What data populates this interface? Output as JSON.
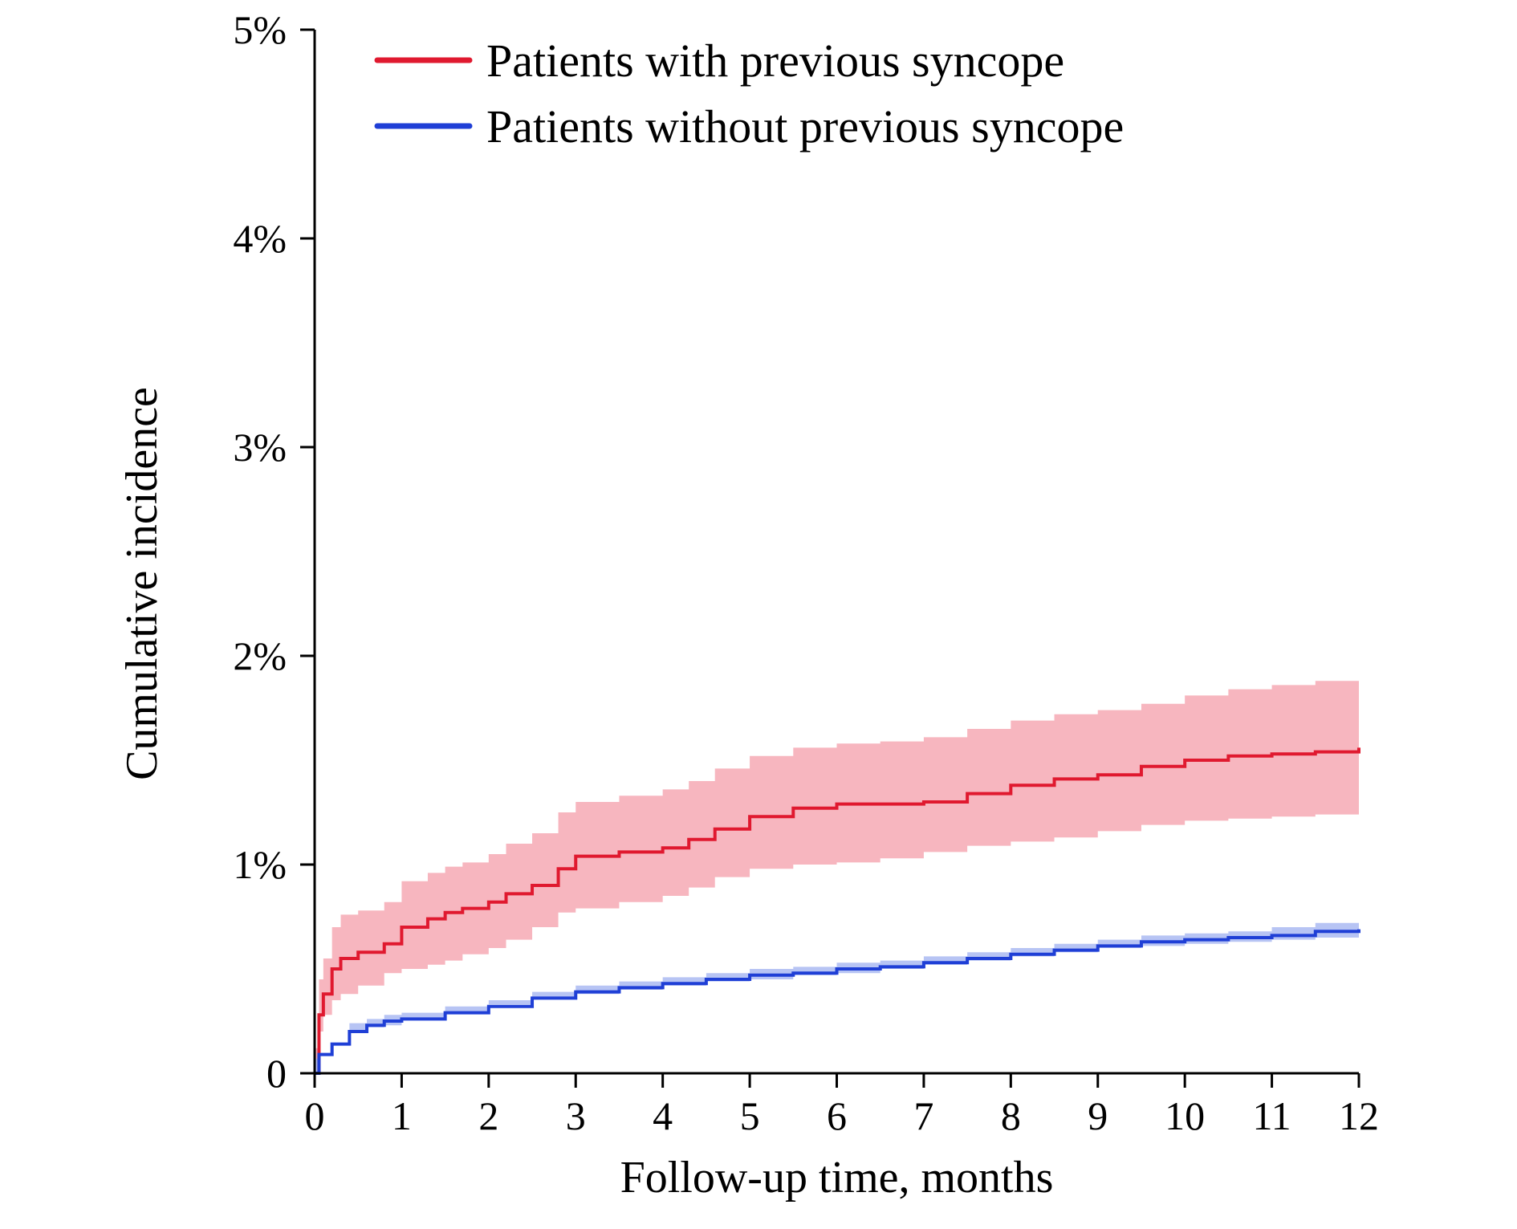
{
  "chart_data": {
    "type": "line",
    "xlabel": "Follow-up time, months",
    "ylabel": "Cumulative incidence",
    "xlim": [
      0,
      12
    ],
    "ylim": [
      0,
      5
    ],
    "x_ticks": [
      0,
      1,
      2,
      3,
      4,
      5,
      6,
      7,
      8,
      9,
      10,
      11,
      12
    ],
    "x_tick_labels": [
      "0",
      "1",
      "2",
      "3",
      "4",
      "5",
      "6",
      "7",
      "8",
      "9",
      "10",
      "11",
      "12"
    ],
    "y_ticks": [
      0,
      1,
      2,
      3,
      4,
      5
    ],
    "y_tick_labels": [
      "0",
      "1%",
      "2%",
      "3%",
      "4%",
      "5%"
    ],
    "grid": false,
    "legend_position": "top-left",
    "series": [
      {
        "name": "Patients with previous syncope",
        "color": "#e0192f",
        "band_color": "#f7b6bf",
        "x": [
          0,
          0.05,
          0.1,
          0.2,
          0.3,
          0.5,
          0.8,
          1.0,
          1.3,
          1.5,
          1.7,
          2.0,
          2.2,
          2.5,
          2.8,
          3.0,
          3.5,
          4.0,
          4.3,
          4.6,
          5.0,
          5.5,
          6.0,
          6.5,
          7.0,
          7.5,
          8.0,
          8.5,
          9.0,
          9.5,
          10.0,
          10.5,
          11.0,
          11.5,
          12.0
        ],
        "y": [
          0.0,
          0.28,
          0.38,
          0.5,
          0.55,
          0.58,
          0.62,
          0.7,
          0.74,
          0.77,
          0.79,
          0.82,
          0.86,
          0.9,
          0.98,
          1.04,
          1.06,
          1.08,
          1.12,
          1.17,
          1.23,
          1.27,
          1.29,
          1.29,
          1.3,
          1.34,
          1.38,
          1.41,
          1.43,
          1.47,
          1.5,
          1.52,
          1.53,
          1.54,
          1.56
        ],
        "lower": [
          0.0,
          0.12,
          0.2,
          0.28,
          0.35,
          0.38,
          0.42,
          0.48,
          0.5,
          0.52,
          0.54,
          0.57,
          0.6,
          0.64,
          0.7,
          0.77,
          0.79,
          0.82,
          0.85,
          0.89,
          0.94,
          0.98,
          1.0,
          1.01,
          1.03,
          1.06,
          1.09,
          1.11,
          1.13,
          1.16,
          1.19,
          1.21,
          1.22,
          1.23,
          1.24
        ],
        "upper": [
          0.0,
          0.45,
          0.55,
          0.7,
          0.76,
          0.78,
          0.82,
          0.92,
          0.96,
          0.99,
          1.01,
          1.05,
          1.1,
          1.15,
          1.25,
          1.3,
          1.33,
          1.36,
          1.4,
          1.46,
          1.52,
          1.56,
          1.58,
          1.59,
          1.61,
          1.65,
          1.69,
          1.72,
          1.74,
          1.77,
          1.81,
          1.84,
          1.86,
          1.88,
          1.89
        ]
      },
      {
        "name": "Patients without previous syncope",
        "color": "#1f3fd6",
        "band_color": "#b7c4f4",
        "x": [
          0,
          0.05,
          0.2,
          0.4,
          0.6,
          0.8,
          1.0,
          1.5,
          2.0,
          2.5,
          3.0,
          3.5,
          4.0,
          4.5,
          5.0,
          5.5,
          6.0,
          6.5,
          7.0,
          7.5,
          8.0,
          8.5,
          9.0,
          9.5,
          10.0,
          10.5,
          11.0,
          11.5,
          12.0
        ],
        "y": [
          0.0,
          0.09,
          0.14,
          0.2,
          0.23,
          0.25,
          0.26,
          0.29,
          0.32,
          0.36,
          0.39,
          0.41,
          0.43,
          0.45,
          0.47,
          0.48,
          0.5,
          0.51,
          0.53,
          0.55,
          0.57,
          0.59,
          0.61,
          0.63,
          0.64,
          0.65,
          0.66,
          0.68,
          0.69
        ],
        "lower": [
          0.0,
          0.07,
          0.11,
          0.17,
          0.2,
          0.22,
          0.23,
          0.26,
          0.29,
          0.33,
          0.36,
          0.38,
          0.4,
          0.42,
          0.44,
          0.45,
          0.47,
          0.48,
          0.5,
          0.52,
          0.54,
          0.56,
          0.58,
          0.6,
          0.61,
          0.62,
          0.63,
          0.64,
          0.65
        ],
        "upper": [
          0.0,
          0.11,
          0.17,
          0.24,
          0.26,
          0.28,
          0.29,
          0.32,
          0.35,
          0.39,
          0.42,
          0.44,
          0.46,
          0.48,
          0.5,
          0.51,
          0.53,
          0.54,
          0.56,
          0.58,
          0.6,
          0.62,
          0.64,
          0.66,
          0.67,
          0.68,
          0.7,
          0.72,
          0.74
        ]
      }
    ]
  }
}
